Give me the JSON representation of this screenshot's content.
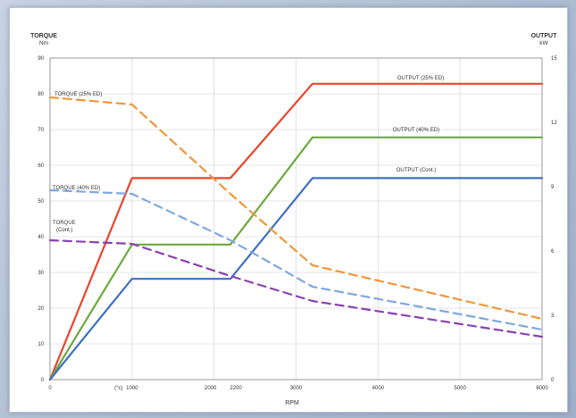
{
  "chart_data": {
    "type": "line",
    "xlabel": "RPM",
    "ylabel_left": [
      "TORQUE",
      "Nm"
    ],
    "ylabel_right": [
      "OUTPUT",
      "kW"
    ],
    "xlim": [
      0,
      6000
    ],
    "ylim_left": [
      0,
      90
    ],
    "ylim_right": [
      0,
      15
    ],
    "x_ticks": [
      {
        "value": 0,
        "label": "0"
      },
      {
        "value": 1000,
        "label": "1000"
      },
      {
        "value": 2000,
        "label": "2000"
      },
      {
        "value": 2200,
        "label": "2200"
      },
      {
        "value": 3000,
        "label": "3000"
      },
      {
        "value": 4000,
        "label": "4000"
      },
      {
        "value": 5000,
        "label": "5000"
      },
      {
        "value": 6000,
        "label": "6000"
      }
    ],
    "x_extra_label": {
      "value": 1000,
      "label": "(°c)"
    },
    "y_ticks_left": [
      0,
      10,
      20,
      30,
      40,
      50,
      60,
      70,
      80,
      90
    ],
    "y_ticks_right": [
      0,
      3,
      6,
      9,
      12,
      15
    ],
    "grid": true,
    "series": [
      {
        "name": "OUTPUT (25% ED)",
        "axis": "right",
        "style": "solid",
        "color": "#e8452c",
        "x": [
          0,
          1000,
          2200,
          3200,
          6000
        ],
        "y": [
          0,
          9.4,
          9.4,
          13.8,
          13.8
        ]
      },
      {
        "name": "OUTPUT (40% ED)",
        "axis": "right",
        "style": "solid",
        "color": "#6caa3c",
        "x": [
          0,
          1000,
          2200,
          3200,
          6000
        ],
        "y": [
          0,
          6.3,
          6.3,
          11.3,
          11.3
        ]
      },
      {
        "name": "OUTPUT (Cont.)",
        "axis": "right",
        "style": "solid",
        "color": "#3f6fc2",
        "x": [
          0,
          1000,
          2200,
          3200,
          6000
        ],
        "y": [
          0,
          4.7,
          4.7,
          9.4,
          9.4
        ]
      },
      {
        "name": "TORQUE (25% ED)",
        "axis": "left",
        "style": "dashed",
        "color": "#f0963a",
        "x": [
          0,
          1000,
          2200,
          3200,
          6000
        ],
        "y": [
          79,
          77,
          52,
          32,
          17
        ]
      },
      {
        "name": "TORQUE (40% ED)",
        "axis": "left",
        "style": "dashed",
        "color": "#7fa8e0",
        "x": [
          0,
          1000,
          2200,
          3200,
          6000
        ],
        "y": [
          53,
          52,
          39,
          26,
          14
        ]
      },
      {
        "name": "TORQUE (Cont.)",
        "axis": "left",
        "style": "dashed",
        "color": "#8a3fb3",
        "x": [
          0,
          1000,
          2200,
          3200,
          6000
        ],
        "y": [
          39,
          38,
          29,
          22,
          12
        ]
      }
    ],
    "labels": [
      {
        "series": 0,
        "text": "OUTPUT (25% ED)"
      },
      {
        "series": 1,
        "text": "OUTPUT (40% ED)"
      },
      {
        "series": 2,
        "text": "OUTPUT (Cont.)"
      },
      {
        "series": 3,
        "text": "TORQUE (25% ED)"
      },
      {
        "series": 4,
        "text": "TORQUE (40% ED)"
      },
      {
        "series": 5,
        "text": "TORQUE",
        "text2": "(Cont.)"
      }
    ]
  }
}
